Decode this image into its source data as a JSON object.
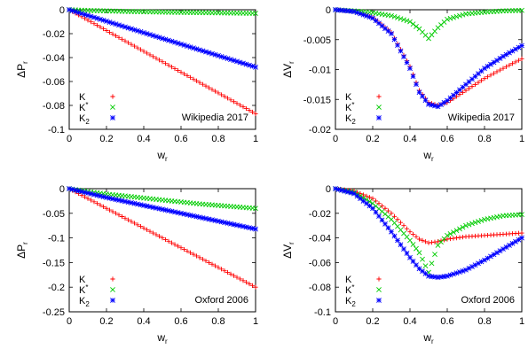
{
  "chart_data": [
    {
      "type": "scatter",
      "annotation": "Wikipedia 2017",
      "xlabel": "w",
      "xlabel_sub": "r",
      "ylabel": "ΔP",
      "ylabel_sub": "r",
      "xlim": [
        0,
        1
      ],
      "ylim": [
        -0.1,
        0
      ],
      "xticks": [
        0,
        0.2,
        0.4,
        0.6,
        0.8,
        1
      ],
      "xtick_labels": [
        "0",
        "0.2",
        "0.4",
        "0.6",
        "0.8",
        "1"
      ],
      "yticks": [
        0,
        -0.02,
        -0.04,
        -0.06,
        -0.08,
        -0.1
      ],
      "ytick_labels": [
        "0",
        "-0.02",
        "-0.04",
        "-0.06",
        "-0.08",
        "-0.1"
      ],
      "legend_position": "bottom-left",
      "series": [
        {
          "name": "K",
          "marker": "plus",
          "color": "#ff0000",
          "x": [
            0,
            0.1,
            0.2,
            0.3,
            0.4,
            0.5,
            0.6,
            0.7,
            0.8,
            0.9,
            1.0
          ],
          "y": [
            0,
            -0.0087,
            -0.0174,
            -0.0261,
            -0.0348,
            -0.0435,
            -0.0522,
            -0.0609,
            -0.0696,
            -0.0783,
            -0.087
          ]
        },
        {
          "name": "K*",
          "marker": "cross",
          "color": "#00cc00",
          "x": [
            0,
            0.1,
            0.2,
            0.3,
            0.4,
            0.5,
            0.6,
            0.7,
            0.8,
            0.9,
            1.0
          ],
          "y": [
            0,
            -0.0006,
            -0.001,
            -0.0014,
            -0.0017,
            -0.002,
            -0.0022,
            -0.0024,
            -0.0026,
            -0.0028,
            -0.003
          ]
        },
        {
          "name": "K2",
          "marker": "star",
          "color": "#0000ff",
          "x": [
            0,
            0.1,
            0.2,
            0.3,
            0.4,
            0.5,
            0.6,
            0.7,
            0.8,
            0.9,
            1.0
          ],
          "y": [
            0,
            -0.0048,
            -0.0096,
            -0.0144,
            -0.0192,
            -0.024,
            -0.0288,
            -0.0336,
            -0.0384,
            -0.0432,
            -0.048
          ]
        }
      ]
    },
    {
      "type": "scatter",
      "annotation": "Wikipedia 2017",
      "xlabel": "w",
      "xlabel_sub": "r",
      "ylabel": "ΔV",
      "ylabel_sub": "r",
      "xlim": [
        0,
        1
      ],
      "ylim": [
        -0.02,
        0
      ],
      "xticks": [
        0,
        0.2,
        0.4,
        0.6,
        0.8,
        1
      ],
      "xtick_labels": [
        "0",
        "0.2",
        "0.4",
        "0.6",
        "0.8",
        "1"
      ],
      "yticks": [
        0,
        -0.005,
        -0.01,
        -0.015,
        -0.02
      ],
      "ytick_labels": [
        "0",
        "-0.005",
        "-0.01",
        "-0.015",
        "-0.02"
      ],
      "legend_position": "bottom-left",
      "series": [
        {
          "name": "K",
          "marker": "plus",
          "color": "#ff0000",
          "x": [
            0,
            0.1,
            0.2,
            0.3,
            0.4,
            0.45,
            0.5,
            0.55,
            0.6,
            0.7,
            0.8,
            0.9,
            1.0
          ],
          "y": [
            0,
            -0.0003,
            -0.0013,
            -0.0038,
            -0.0095,
            -0.0135,
            -0.0155,
            -0.016,
            -0.0155,
            -0.0135,
            -0.0115,
            -0.0098,
            -0.0082
          ]
        },
        {
          "name": "K*",
          "marker": "cross",
          "color": "#00cc00",
          "x": [
            0,
            0.1,
            0.2,
            0.3,
            0.4,
            0.45,
            0.5,
            0.55,
            0.6,
            0.7,
            0.8,
            0.9,
            1.0
          ],
          "y": [
            0,
            -0.0002,
            -0.0005,
            -0.001,
            -0.002,
            -0.0032,
            -0.0048,
            -0.003,
            -0.0016,
            -0.0007,
            -0.0004,
            -0.0002,
            -0.0001
          ]
        },
        {
          "name": "K2",
          "marker": "star",
          "color": "#0000ff",
          "x": [
            0,
            0.1,
            0.2,
            0.3,
            0.4,
            0.45,
            0.5,
            0.55,
            0.6,
            0.7,
            0.8,
            0.9,
            1.0
          ],
          "y": [
            0,
            -0.0003,
            -0.0014,
            -0.004,
            -0.0098,
            -0.0138,
            -0.0158,
            -0.0162,
            -0.0152,
            -0.0125,
            -0.0098,
            -0.0078,
            -0.006
          ]
        }
      ]
    },
    {
      "type": "scatter",
      "annotation": "Oxford 2006",
      "xlabel": "w",
      "xlabel_sub": "r",
      "ylabel": "ΔP",
      "ylabel_sub": "r",
      "xlim": [
        0,
        1
      ],
      "ylim": [
        -0.25,
        0
      ],
      "xticks": [
        0,
        0.2,
        0.4,
        0.6,
        0.8,
        1
      ],
      "xtick_labels": [
        "0",
        "0.2",
        "0.4",
        "0.6",
        "0.8",
        "1"
      ],
      "yticks": [
        0,
        -0.05,
        -0.1,
        -0.15,
        -0.2,
        -0.25
      ],
      "ytick_labels": [
        "0",
        "-0.05",
        "-0.1",
        "-0.15",
        "-0.2",
        "-0.25"
      ],
      "legend_position": "bottom-left",
      "series": [
        {
          "name": "K",
          "marker": "plus",
          "color": "#ff0000",
          "x": [
            0,
            0.1,
            0.2,
            0.3,
            0.4,
            0.5,
            0.6,
            0.7,
            0.8,
            0.9,
            1.0
          ],
          "y": [
            0,
            -0.02,
            -0.04,
            -0.06,
            -0.08,
            -0.1,
            -0.12,
            -0.14,
            -0.16,
            -0.18,
            -0.2
          ]
        },
        {
          "name": "K*",
          "marker": "cross",
          "color": "#00cc00",
          "x": [
            0,
            0.1,
            0.2,
            0.3,
            0.4,
            0.5,
            0.6,
            0.7,
            0.8,
            0.9,
            1.0
          ],
          "y": [
            0,
            -0.006,
            -0.011,
            -0.015,
            -0.019,
            -0.023,
            -0.027,
            -0.031,
            -0.034,
            -0.037,
            -0.04
          ]
        },
        {
          "name": "K2",
          "marker": "star",
          "color": "#0000ff",
          "x": [
            0,
            0.1,
            0.2,
            0.3,
            0.4,
            0.5,
            0.6,
            0.7,
            0.8,
            0.9,
            1.0
          ],
          "y": [
            0,
            -0.009,
            -0.018,
            -0.026,
            -0.034,
            -0.042,
            -0.05,
            -0.058,
            -0.066,
            -0.074,
            -0.082
          ]
        }
      ]
    },
    {
      "type": "scatter",
      "annotation": "Oxford 2006",
      "xlabel": "w",
      "xlabel_sub": "r",
      "ylabel": "ΔV",
      "ylabel_sub": "r",
      "xlim": [
        0,
        1
      ],
      "ylim": [
        -0.1,
        0
      ],
      "xticks": [
        0,
        0.2,
        0.4,
        0.6,
        0.8,
        1
      ],
      "xtick_labels": [
        "0",
        "0.2",
        "0.4",
        "0.6",
        "0.8",
        "1"
      ],
      "yticks": [
        0,
        -0.02,
        -0.04,
        -0.06,
        -0.08,
        -0.1
      ],
      "ytick_labels": [
        "0",
        "-0.02",
        "-0.04",
        "-0.06",
        "-0.08",
        "-0.1"
      ],
      "legend_position": "bottom-left",
      "series": [
        {
          "name": "K",
          "marker": "plus",
          "color": "#ff0000",
          "x": [
            0,
            0.1,
            0.2,
            0.3,
            0.4,
            0.45,
            0.5,
            0.55,
            0.6,
            0.7,
            0.8,
            0.9,
            1.0
          ],
          "y": [
            0,
            -0.002,
            -0.008,
            -0.02,
            -0.035,
            -0.041,
            -0.044,
            -0.043,
            -0.041,
            -0.039,
            -0.038,
            -0.037,
            -0.036
          ]
        },
        {
          "name": "K*",
          "marker": "cross",
          "color": "#00cc00",
          "x": [
            0,
            0.1,
            0.2,
            0.3,
            0.4,
            0.45,
            0.5,
            0.55,
            0.6,
            0.7,
            0.8,
            0.9,
            1.0
          ],
          "y": [
            0,
            -0.003,
            -0.012,
            -0.025,
            -0.042,
            -0.052,
            -0.068,
            -0.046,
            -0.038,
            -0.03,
            -0.025,
            -0.022,
            -0.021
          ]
        },
        {
          "name": "K2",
          "marker": "star",
          "color": "#0000ff",
          "x": [
            0,
            0.1,
            0.2,
            0.3,
            0.4,
            0.45,
            0.5,
            0.55,
            0.6,
            0.7,
            0.8,
            0.9,
            1.0
          ],
          "y": [
            0,
            -0.004,
            -0.016,
            -0.035,
            -0.056,
            -0.065,
            -0.071,
            -0.072,
            -0.071,
            -0.066,
            -0.058,
            -0.049,
            -0.04
          ]
        }
      ]
    }
  ]
}
